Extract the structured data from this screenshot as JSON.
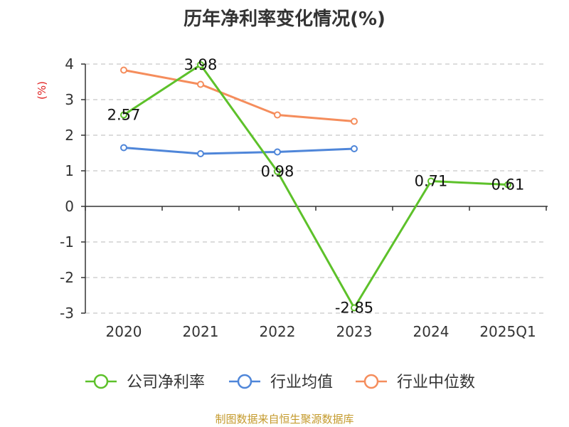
{
  "title": "历年净利率变化情况(%)",
  "source": "制图数据来自恒生聚源数据库",
  "chart_data": {
    "type": "line",
    "title": "历年净利率变化情况(%)",
    "ylabel": "(%)",
    "categories": [
      "2020",
      "2021",
      "2022",
      "2023",
      "2024",
      "2025Q1"
    ],
    "ylim": [
      -3,
      4
    ],
    "yticks": [
      4,
      3,
      2,
      1,
      0,
      -1,
      -2,
      -3
    ],
    "grid": true,
    "legend_position": "bottom",
    "series": [
      {
        "name": "公司净利率",
        "color": "#5dc12a",
        "values": [
          2.57,
          3.98,
          0.98,
          -2.85,
          0.71,
          0.61
        ],
        "labels": [
          "2.57",
          "3.98",
          "0.98",
          "-2.85",
          "0.71",
          "0.61"
        ]
      },
      {
        "name": "行业均值",
        "color": "#4f86d9",
        "values": [
          1.65,
          1.48,
          1.53,
          1.62,
          null,
          null
        ]
      },
      {
        "name": "行业中位数",
        "color": "#f58d5c",
        "values": [
          3.83,
          3.43,
          2.57,
          2.39,
          null,
          null
        ]
      }
    ]
  }
}
